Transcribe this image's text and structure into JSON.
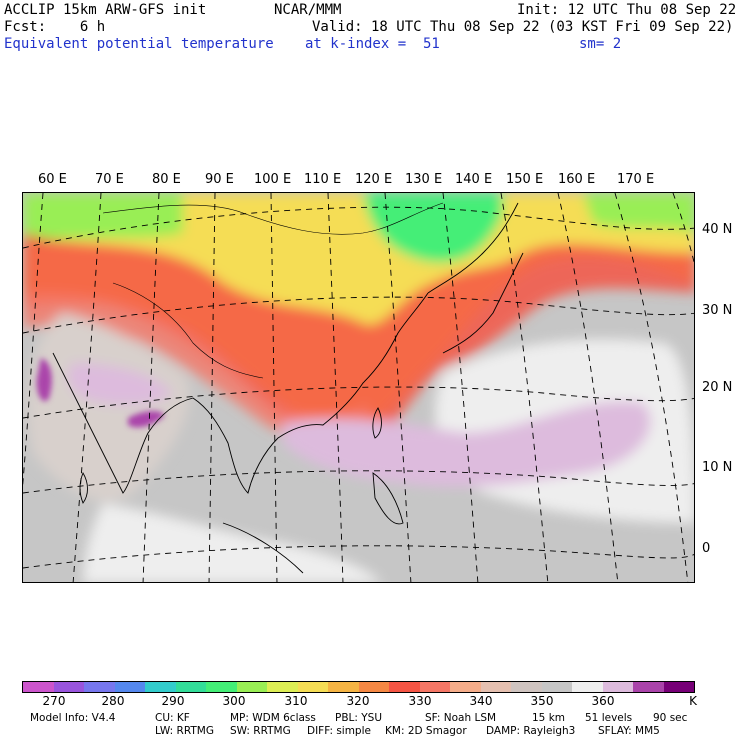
{
  "header": {
    "model": "ACCLIP 15km ARW-GFS init",
    "center": "NCAR/MMM",
    "init": "Init: 12 UTC Thu 08 Sep 22",
    "fcst": "Fcst:    6 h",
    "valid": "Valid: 18 UTC Thu 08 Sep 22 (03 KST Fri 09 Sep 22)",
    "field": "Equivalent potential temperature",
    "level": "at k-index =  51",
    "smooth": "sm= 2"
  },
  "lon_labels": [
    "60 E",
    "70 E",
    "80 E",
    "90 E",
    "100 E",
    "110 E",
    "120 E",
    "130 E",
    "140 E",
    "150 E",
    "160 E",
    "170 E"
  ],
  "lat_labels": [
    "40 N",
    "30 N",
    "20 N",
    "10 N",
    "0"
  ],
  "colorbar": {
    "colors": [
      "#cc55cc",
      "#9955dd",
      "#7777ee",
      "#5588ee",
      "#33cccc",
      "#33dd99",
      "#44ee77",
      "#99ee55",
      "#ddee55",
      "#f5dd55",
      "#f5b444",
      "#f58844",
      "#f55544",
      "#f57766",
      "#f5ad8a",
      "#e5c0b0",
      "#cfc4c0",
      "#c6c6c6",
      "#eeeeee",
      "#ddbbdd",
      "#aa44aa",
      "#770077"
    ],
    "labels": [
      "270",
      "280",
      "290",
      "300",
      "310",
      "320",
      "330",
      "340",
      "350",
      "360",
      "K"
    ]
  },
  "footer": {
    "line1": [
      "Model Info: V4.4",
      "CU: KF",
      "MP: WDM 6class",
      "PBL: YSU",
      "SF: Noah LSM",
      "15 km",
      "51 levels",
      "90 sec"
    ],
    "line2": [
      "LW: RRTMG",
      "SW: RRTMG",
      "DIFF: simple",
      "KM: 2D Smagor",
      "DAMP: Rayleigh3",
      "SFLAY: MM5"
    ]
  }
}
